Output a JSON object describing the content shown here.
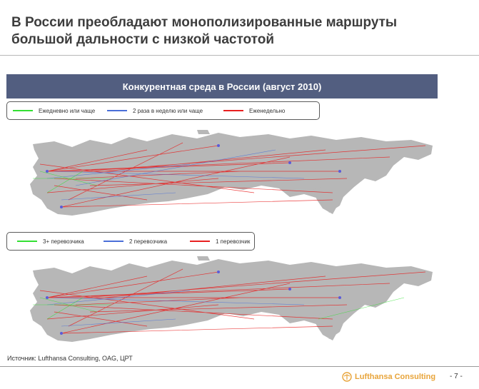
{
  "slide": {
    "title_line1": "В России преобладают монополизированные маршруты",
    "title_line2": "большой дальности с низкой частотой",
    "banner": "Конкурентная среда в России (август 2010)"
  },
  "legend_frequency": {
    "items": [
      {
        "label": "Ежедневно или чаще",
        "color": "#33e033"
      },
      {
        "label": "2 раза в неделю или чаще",
        "color": "#4a6fd8"
      },
      {
        "label": "Еженедельно",
        "color": "#e82020"
      }
    ]
  },
  "legend_carriers": {
    "items": [
      {
        "label": "3+ перевозчика",
        "color": "#33e033"
      },
      {
        "label": "2 перевозчика",
        "color": "#4a6fd8"
      },
      {
        "label": "1 перевозчик",
        "color": "#e82020"
      }
    ]
  },
  "colors": {
    "banner_bg": "#525e80",
    "land": "#b7b7b7",
    "brand_orange": "#e8a43a"
  },
  "footer": {
    "source": "Источник: Lufthansa Consulting, OAG, ЦРТ",
    "brand": "Lufthansa Consulting",
    "page": "- 7 -"
  }
}
